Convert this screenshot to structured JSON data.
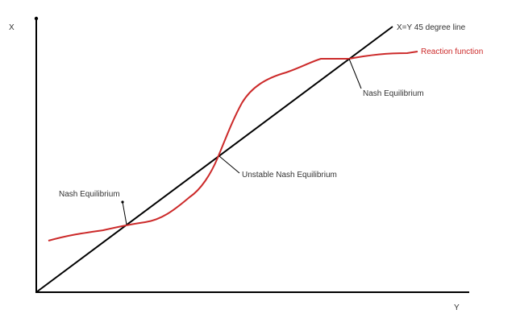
{
  "axes": {
    "y_axis_label": "X",
    "x_axis_label": "Y"
  },
  "lines": {
    "diagonal_label": "X=Y 45 degree line",
    "reaction_label": "Reaction function"
  },
  "annotations": {
    "left_equilibrium": "Nash Equilibrium",
    "middle_equilibrium": "Unstable Nash Equilibrium",
    "right_equilibrium": "Nash Equilibrium"
  },
  "colors": {
    "axis": "#000000",
    "diagonal": "#000000",
    "reaction": "#cc2a2a",
    "text": "#333333",
    "reaction_text": "#cc2a2a"
  }
}
